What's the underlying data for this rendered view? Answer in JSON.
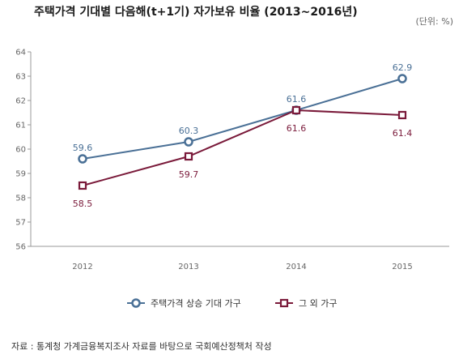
{
  "chart_data": {
    "type": "line",
    "title": "주택가격 기대별 다음해(t+1기) 자가보유 비율 (2013~2016년)",
    "unit_label": "(단위: %)",
    "categories": [
      "2012",
      "2013",
      "2014",
      "2015"
    ],
    "ylim": [
      56,
      64
    ],
    "yticks": [
      56,
      57,
      58,
      59,
      60,
      61,
      62,
      63,
      64
    ],
    "grid": false,
    "legend_position": "bottom",
    "series": [
      {
        "name": "주택가격 상승 기대 가구",
        "values": [
          59.6,
          60.3,
          61.6,
          62.9
        ],
        "labels": [
          "59.6",
          "60.3",
          "61.6",
          "62.9"
        ],
        "color": "#4a7096",
        "marker": "circle"
      },
      {
        "name": "그 외 가구",
        "values": [
          58.5,
          59.7,
          61.6,
          61.4
        ],
        "labels": [
          "58.5",
          "59.7",
          "61.6",
          "61.4"
        ],
        "color": "#7a1a3a",
        "marker": "square"
      }
    ]
  },
  "source": "자료 : 통계청 가계금융복지조사 자료를 바탕으로 국회예산정책처 작성"
}
